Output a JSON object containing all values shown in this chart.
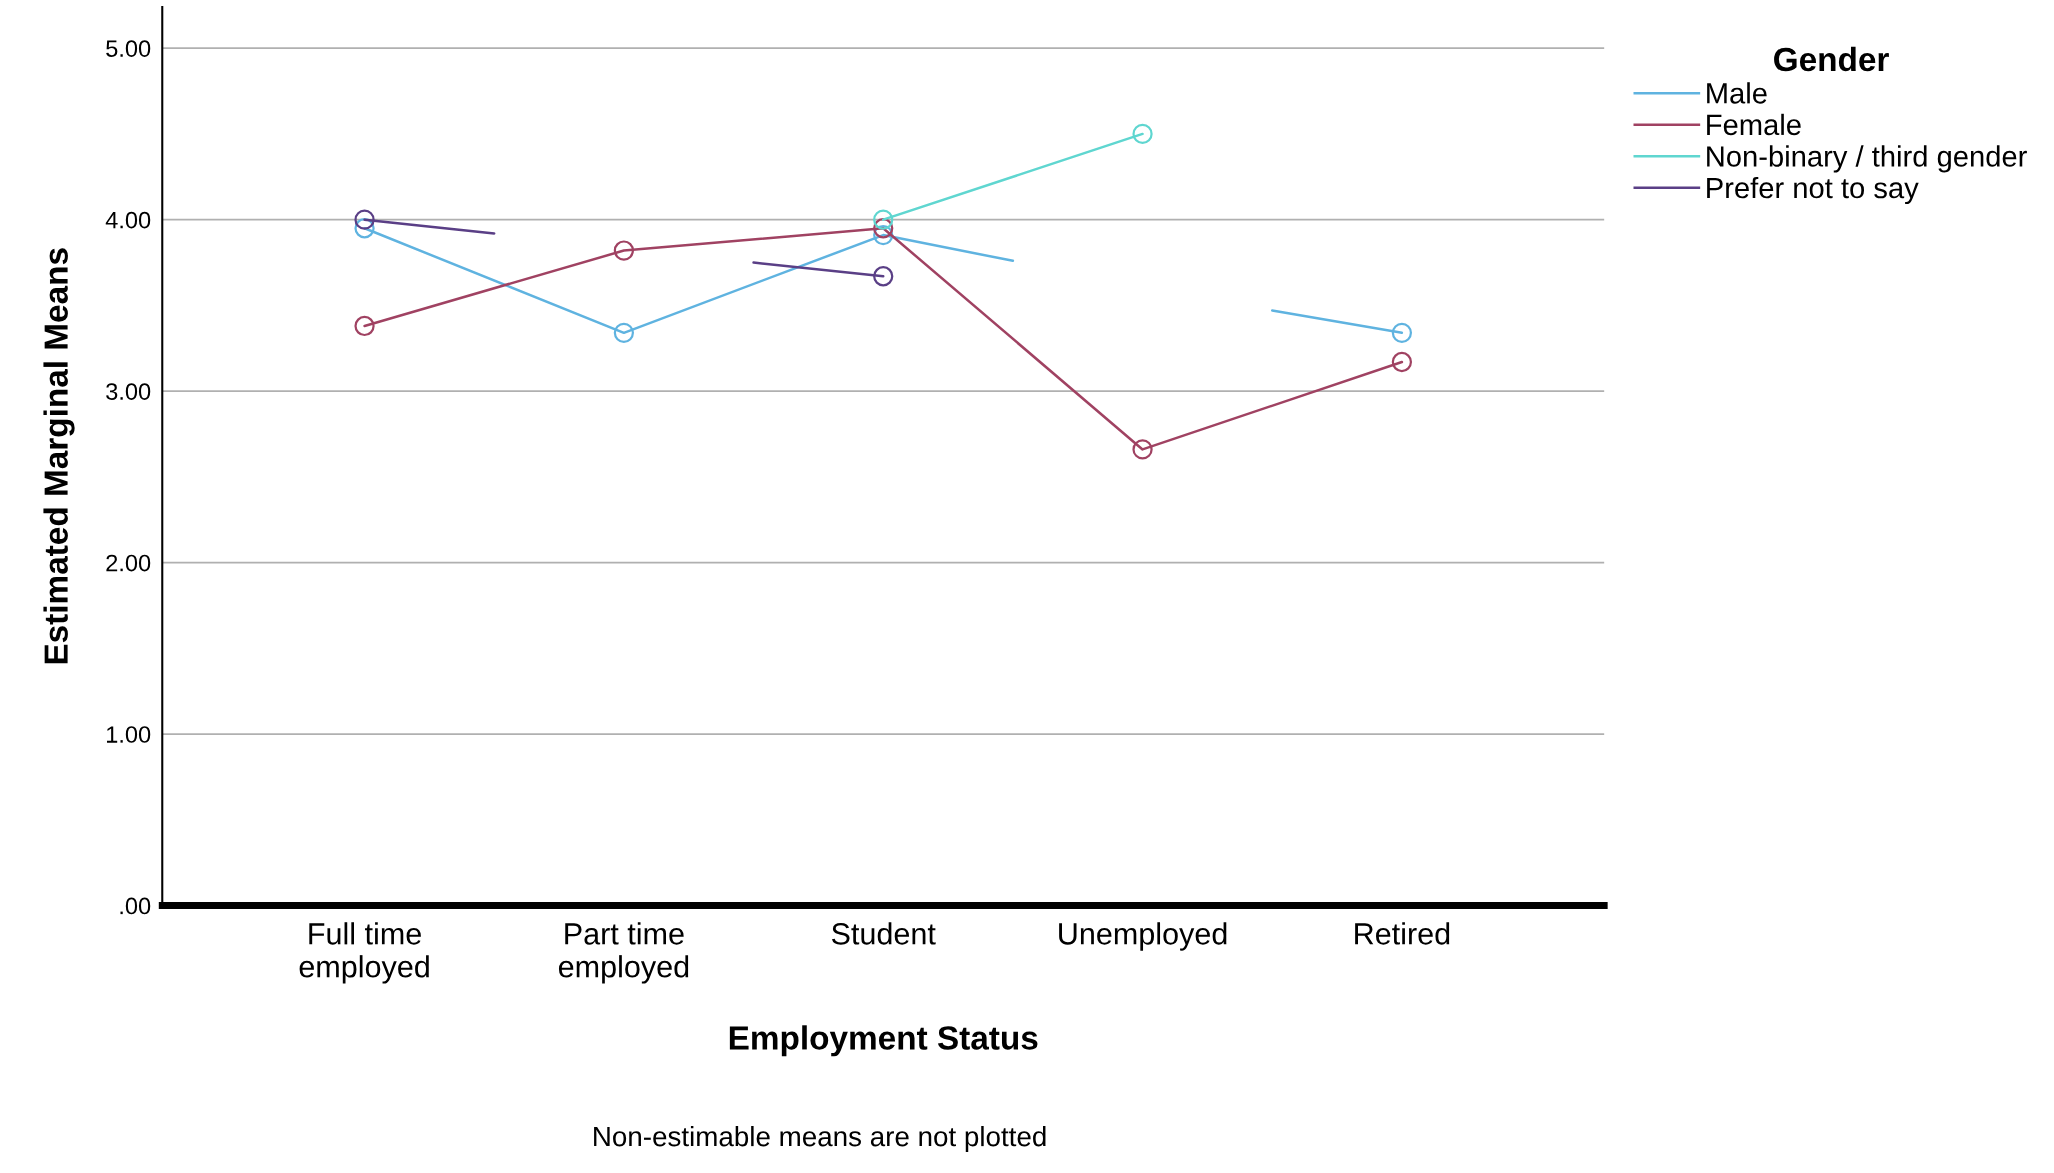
{
  "chart_data": {
    "type": "line",
    "xlabel": "Employment Status",
    "ylabel": "Estimated Marginal Means",
    "legend_title": "Gender",
    "annotations": [
      "Non-estimable means are not plotted"
    ],
    "categories": [
      "Full time\nemployed",
      null,
      "Part time\nemployed",
      null,
      "Student",
      null,
      "Unemployed",
      null,
      "Retired"
    ],
    "ylim": [
      0,
      5.24
    ],
    "yticks": [
      {
        "value": 0,
        "label": ".00"
      },
      {
        "value": 1,
        "label": "1.00"
      },
      {
        "value": 2,
        "label": "2.00"
      },
      {
        "value": 3,
        "label": "3.00"
      },
      {
        "value": 4,
        "label": "4.00"
      },
      {
        "value": 5,
        "label": "5.00"
      }
    ],
    "grid": "y",
    "legend": "top right",
    "marker": "circle",
    "line_style": "solid",
    "series": [
      {
        "name": "Male",
        "color": "#5fb3e0",
        "values": [
          3.95,
          null,
          3.34,
          null,
          3.91,
          3.76,
          null,
          null,
          null
        ]
      },
      {
        "name": "Female",
        "color": "#a04262",
        "values": [
          3.38,
          null,
          3.82,
          null,
          3.95,
          null,
          2.66,
          null,
          3.17
        ]
      },
      {
        "name": "Non-binary / third gender",
        "color": "#5fd6d0",
        "values": [
          null,
          null,
          null,
          null,
          4.0,
          null,
          4.5,
          null,
          null
        ]
      },
      {
        "name": "Prefer not to say",
        "color": "#5a3f86",
        "values": [
          4.0,
          3.92,
          null,
          null,
          null,
          null,
          null,
          null,
          null
        ]
      },
      {
        "color": "#5fb3e0",
        "values": [
          null,
          null,
          null,
          null,
          null,
          null,
          null,
          3.47,
          3.34
        ]
      },
      {
        "color": "#5a3f86",
        "values": [
          null,
          null,
          null,
          3.75,
          3.67,
          null,
          null,
          null,
          null
        ]
      }
    ]
  }
}
